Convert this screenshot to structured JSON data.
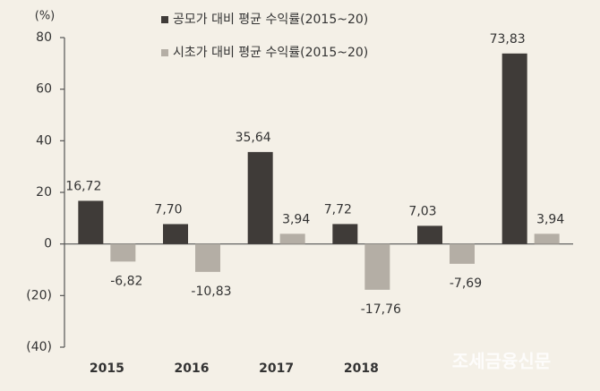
{
  "chart_data": {
    "type": "bar",
    "y_unit": "(%)",
    "categories": [
      "2015",
      "2016",
      "2017",
      "2018",
      null,
      null
    ],
    "series": [
      {
        "name": "공모가 대비 평균 수익률(2015~20)",
        "color": "#3f3b38",
        "values": [
          16.72,
          7.7,
          35.64,
          7.72,
          7.03,
          73.83
        ],
        "value_labels": [
          "16,72",
          "7,70",
          "35,64",
          "7,72",
          "7,03",
          "73,83"
        ]
      },
      {
        "name": "시초가 대비 평균 수익률(2015~20)",
        "color": "#b4aea5",
        "values": [
          -6.82,
          -10.83,
          3.94,
          -17.76,
          -7.69,
          3.94
        ],
        "value_labels": [
          "-6,82",
          "-10,83",
          "3,94",
          "-17,76",
          "-7,69",
          "3,94"
        ]
      }
    ],
    "ylim": [
      -40,
      80
    ],
    "yticks": [
      {
        "value": -40,
        "label": "(40)"
      },
      {
        "value": -20,
        "label": "(20)"
      },
      0,
      20,
      40,
      60,
      80
    ],
    "grid": false,
    "watermark": "조세금융신문"
  }
}
